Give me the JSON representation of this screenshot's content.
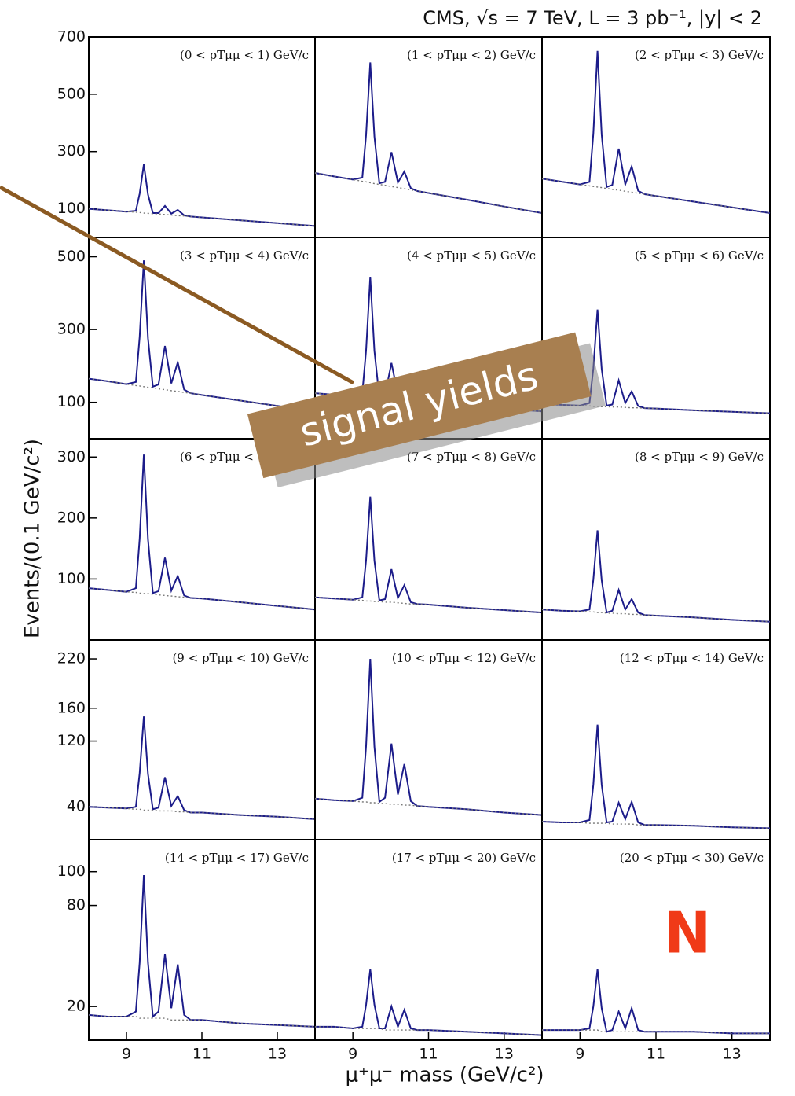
{
  "figure": {
    "title": "CMS, √s = 7 TeV, L = 3 pb⁻¹, |y| < 2",
    "y_label": "Events/(0.1 GeV/c²)",
    "x_label": "μ⁺μ⁻ mass (GeV/c²)",
    "annotations": [
      "signal yields",
      "N"
    ]
  },
  "chart_data": [
    {
      "type": "line",
      "label": "(0 < pTμμ < 1) GeV/c",
      "x": [
        8,
        8.5,
        9,
        9.25,
        9.35,
        9.46,
        9.57,
        9.7,
        9.85,
        10.02,
        10.19,
        10.36,
        10.53,
        10.7,
        11,
        12,
        13,
        14
      ],
      "xlim": [
        8,
        14
      ],
      "ylim": [
        0,
        700
      ],
      "yticks": [
        100,
        300,
        500,
        700
      ],
      "series": [
        {
          "color": "#1c1c8a",
          "values": [
            100,
            95,
            90,
            93,
            153,
            255,
            150,
            85,
            85,
            110,
            83,
            96,
            77,
            73,
            70,
            60,
            50,
            40
          ]
        },
        {
          "color": "#777777",
          "style": "dotted",
          "values": [
            100,
            95,
            90,
            88,
            87,
            85,
            84,
            83,
            82,
            80,
            78,
            76,
            75,
            73,
            70,
            60,
            50,
            40
          ]
        }
      ]
    },
    {
      "type": "line",
      "label": "(1 < pTμμ < 2) GeV/c",
      "x": [
        8,
        8.5,
        9,
        9.25,
        9.35,
        9.46,
        9.57,
        9.7,
        9.85,
        10.02,
        10.19,
        10.36,
        10.53,
        10.7,
        11,
        12,
        13,
        14
      ],
      "xlim": [
        8,
        14
      ],
      "ylim": [
        0,
        700
      ],
      "series": [
        {
          "color": "#1c1c8a",
          "values": [
            225,
            213,
            202,
            209,
            358,
            611,
            352,
            189,
            194,
            298,
            192,
            230,
            172,
            162,
            155,
            132,
            108,
            85
          ]
        },
        {
          "color": "#777777",
          "style": "dotted",
          "values": [
            225,
            213,
            202,
            196,
            194,
            191,
            188,
            185,
            182,
            178,
            174,
            170,
            166,
            162,
            155,
            132,
            108,
            85
          ]
        }
      ]
    },
    {
      "type": "line",
      "label": "(2 < pTμμ < 3) GeV/c",
      "x": [
        8,
        8.5,
        9,
        9.25,
        9.35,
        9.46,
        9.57,
        9.7,
        9.85,
        10.02,
        10.19,
        10.36,
        10.53,
        10.7,
        11,
        12,
        13,
        14
      ],
      "xlim": [
        8,
        14
      ],
      "ylim": [
        0,
        700
      ],
      "series": [
        {
          "color": "#1c1c8a",
          "values": [
            205,
            195,
            185,
            194,
            363,
            651,
            359,
            176,
            183,
            310,
            185,
            248,
            163,
            151,
            145,
            125,
            105,
            85
          ]
        },
        {
          "color": "#777777",
          "style": "dotted",
          "values": [
            205,
            195,
            185,
            180,
            178,
            176,
            174,
            171,
            168,
            165,
            161,
            158,
            154,
            151,
            145,
            125,
            105,
            85
          ]
        }
      ]
    },
    {
      "type": "line",
      "label": "(3 < pTμμ < 4) GeV/c",
      "x": [
        8,
        8.5,
        9,
        9.25,
        9.35,
        9.46,
        9.57,
        9.7,
        9.85,
        10.02,
        10.19,
        10.36,
        10.53,
        10.7,
        11,
        12,
        13,
        14
      ],
      "xlim": [
        8,
        14
      ],
      "ylim": [
        0,
        553
      ],
      "yticks": [
        100,
        300,
        500
      ],
      "series": [
        {
          "color": "#1c1c8a",
          "values": [
            165,
            158,
            150,
            156,
            280,
            490,
            276,
            143,
            149,
            255,
            152,
            210,
            135,
            125,
            120,
            105,
            90,
            75
          ]
        },
        {
          "color": "#777777",
          "style": "dotted",
          "values": [
            165,
            158,
            150,
            146,
            145,
            143,
            141,
            140,
            137,
            135,
            132,
            130,
            127,
            125,
            120,
            105,
            90,
            75
          ]
        }
      ]
    },
    {
      "type": "line",
      "label": "(4 < pTμμ < 5) GeV/c",
      "x": [
        8,
        8.5,
        9,
        9.25,
        9.35,
        9.46,
        9.57,
        9.7,
        9.85,
        10.02,
        10.19,
        10.36,
        10.53,
        10.7,
        11,
        12,
        13,
        14
      ],
      "xlim": [
        8,
        14
      ],
      "ylim": [
        0,
        553
      ],
      "series": [
        {
          "color": "#1c1c8a",
          "values": [
            125,
            121,
            117,
            125,
            243,
            445,
            241,
            114,
            120,
            208,
            121,
            140,
            108,
            103,
            100,
            92,
            83,
            75
          ]
        },
        {
          "color": "#777777",
          "style": "dotted",
          "values": [
            125,
            121,
            117,
            115,
            114,
            113,
            112,
            111,
            110,
            108,
            107,
            105,
            104,
            103,
            100,
            92,
            83,
            75
          ]
        }
      ]
    },
    {
      "type": "line",
      "label": "(5 < pTμμ < 6) GeV/c",
      "x": [
        8,
        8.5,
        9,
        9.25,
        9.35,
        9.46,
        9.57,
        9.7,
        9.85,
        10.02,
        10.19,
        10.36,
        10.53,
        10.7,
        11,
        12,
        13,
        14
      ],
      "xlim": [
        8,
        14
      ],
      "ylim": [
        0,
        553
      ],
      "series": [
        {
          "color": "#1c1c8a",
          "values": [
            95,
            93,
            91,
            98,
            193,
            355,
            192,
            91,
            94,
            160,
            98,
            130,
            90,
            84,
            83,
            78,
            74,
            70
          ]
        },
        {
          "color": "#777777",
          "style": "dotted",
          "values": [
            95,
            93,
            91,
            90,
            89,
            89,
            88,
            88,
            87,
            87,
            86,
            85,
            85,
            84,
            83,
            78,
            74,
            70
          ]
        }
      ]
    },
    {
      "type": "line",
      "label": "(6 < pTμμ < 7) GeV/c",
      "x": [
        8,
        8.5,
        9,
        9.25,
        9.35,
        9.46,
        9.57,
        9.7,
        9.85,
        10.02,
        10.19,
        10.36,
        10.53,
        10.7,
        11,
        12,
        13,
        14
      ],
      "xlim": [
        8,
        14
      ],
      "ylim": [
        0,
        330
      ],
      "yticks": [
        100,
        200,
        300
      ],
      "series": [
        {
          "color": "#1c1c8a",
          "values": [
            85,
            82,
            79,
            85,
            166,
            304,
            165,
            77,
            80,
            135,
            81,
            105,
            73,
            69,
            68,
            62,
            56,
            50
          ]
        },
        {
          "color": "#777777",
          "style": "dotted",
          "values": [
            85,
            82,
            79,
            78,
            77,
            76,
            76,
            75,
            74,
            73,
            72,
            71,
            70,
            69,
            68,
            62,
            56,
            50
          ]
        }
      ]
    },
    {
      "type": "line",
      "label": "(7 < pTμμ < 8) GeV/c",
      "x": [
        8,
        8.5,
        9,
        9.25,
        9.35,
        9.46,
        9.57,
        9.7,
        9.85,
        10.02,
        10.19,
        10.36,
        10.53,
        10.7,
        11,
        12,
        13,
        14
      ],
      "xlim": [
        8,
        14
      ],
      "ylim": [
        0,
        330
      ],
      "series": [
        {
          "color": "#1c1c8a",
          "values": [
            70,
            68,
            66,
            70,
            131,
            235,
            130,
            65,
            67,
            116,
            69,
            90,
            62,
            59,
            58,
            53,
            49,
            45
          ]
        },
        {
          "color": "#777777",
          "style": "dotted",
          "values": [
            70,
            68,
            66,
            65,
            64,
            64,
            63,
            63,
            62,
            62,
            61,
            60,
            59,
            59,
            58,
            53,
            49,
            45
          ]
        }
      ]
    },
    {
      "type": "line",
      "label": "(8 < pTμμ < 9) GeV/c",
      "x": [
        8,
        8.5,
        9,
        9.25,
        9.35,
        9.46,
        9.57,
        9.7,
        9.85,
        10.02,
        10.19,
        10.36,
        10.53,
        10.7,
        11,
        12,
        13,
        14
      ],
      "xlim": [
        8,
        14
      ],
      "ylim": [
        0,
        330
      ],
      "series": [
        {
          "color": "#1c1c8a",
          "values": [
            50,
            48,
            47,
            50,
            99,
            180,
            98,
            45,
            48,
            82,
            50,
            67,
            45,
            41,
            40,
            37,
            33,
            30
          ]
        },
        {
          "color": "#777777",
          "style": "dotted",
          "values": [
            50,
            48,
            47,
            46,
            46,
            45,
            45,
            44,
            44,
            43,
            43,
            42,
            42,
            41,
            40,
            37,
            33,
            30
          ]
        }
      ]
    },
    {
      "type": "line",
      "label": "(9 < pTμμ < 10) GeV/c",
      "x": [
        8,
        8.5,
        9,
        9.25,
        9.35,
        9.46,
        9.57,
        9.7,
        9.85,
        10.02,
        10.19,
        10.36,
        10.53,
        10.7,
        11,
        12,
        13,
        14
      ],
      "xlim": [
        8,
        14
      ],
      "ylim": [
        0,
        243
      ],
      "yticks": [
        40,
        120,
        160,
        220
      ],
      "series": [
        {
          "color": "#1c1c8a",
          "values": [
            40,
            39,
            38,
            40,
            81,
            150,
            80,
            37,
            39,
            76,
            41,
            53,
            36,
            33,
            33,
            30,
            28,
            25
          ]
        },
        {
          "color": "#777777",
          "style": "dotted",
          "values": [
            40,
            39,
            38,
            37,
            37,
            36,
            36,
            36,
            35,
            35,
            35,
            34,
            34,
            33,
            33,
            30,
            28,
            25
          ]
        }
      ]
    },
    {
      "type": "line",
      "label": "(10 < pTμμ < 12) GeV/c",
      "x": [
        8,
        8.5,
        9,
        9.25,
        9.35,
        9.46,
        9.57,
        9.7,
        9.85,
        10.02,
        10.19,
        10.36,
        10.53,
        10.7,
        11,
        12,
        13,
        14
      ],
      "xlim": [
        8,
        14
      ],
      "ylim": [
        0,
        243
      ],
      "series": [
        {
          "color": "#1c1c8a",
          "values": [
            50,
            48,
            47,
            51,
            114,
            220,
            113,
            46,
            51,
            117,
            55,
            92,
            47,
            41,
            40,
            37,
            33,
            30
          ]
        },
        {
          "color": "#777777",
          "style": "dotted",
          "values": [
            50,
            48,
            47,
            46,
            46,
            45,
            45,
            44,
            44,
            43,
            43,
            42,
            42,
            41,
            40,
            37,
            33,
            30
          ]
        }
      ]
    },
    {
      "type": "line",
      "label": "(12 < pTμμ < 14) GeV/c",
      "x": [
        8,
        8.5,
        9,
        9.25,
        9.35,
        9.46,
        9.57,
        9.7,
        9.85,
        10.02,
        10.19,
        10.36,
        10.53,
        10.7,
        11,
        12,
        13,
        14
      ],
      "xlim": [
        8,
        14
      ],
      "ylim": [
        0,
        243
      ],
      "series": [
        {
          "color": "#1c1c8a",
          "values": [
            22,
            21,
            21,
            24,
            67,
            140,
            67,
            21,
            22,
            45,
            25,
            46,
            21,
            18,
            18,
            17,
            15,
            14
          ]
        },
        {
          "color": "#777777",
          "style": "dotted",
          "values": [
            22,
            21,
            21,
            20,
            20,
            20,
            20,
            20,
            19,
            19,
            19,
            19,
            18,
            18,
            18,
            17,
            15,
            14
          ]
        }
      ]
    },
    {
      "type": "line",
      "label": "(14 < pTμμ < 17) GeV/c",
      "x": [
        8,
        8.5,
        9,
        9.25,
        9.35,
        9.46,
        9.57,
        9.7,
        9.85,
        10.02,
        10.19,
        10.36,
        10.53,
        10.7,
        11,
        12,
        13,
        14
      ],
      "xlim": [
        8,
        14
      ],
      "ylim": [
        0,
        119
      ],
      "yticks": [
        20,
        80,
        100
      ],
      "xticks": [
        9,
        11,
        13
      ],
      "series": [
        {
          "color": "#1c1c8a",
          "values": [
            15,
            14,
            14,
            17,
            46,
            98,
            46,
            14,
            17,
            51,
            19,
            45,
            15,
            12,
            12,
            10,
            9,
            8
          ]
        },
        {
          "color": "#777777",
          "style": "dotted",
          "values": [
            15,
            14,
            14,
            14,
            13,
            13,
            13,
            13,
            13,
            13,
            12,
            12,
            12,
            12,
            12,
            10,
            9,
            8
          ]
        }
      ]
    },
    {
      "type": "line",
      "label": "(17 < pTμμ < 20) GeV/c",
      "x": [
        8,
        8.5,
        9,
        9.25,
        9.35,
        9.46,
        9.57,
        9.7,
        9.85,
        10.02,
        10.19,
        10.36,
        10.53,
        10.7,
        11,
        12,
        13,
        14
      ],
      "xlim": [
        8,
        14
      ],
      "ylim": [
        0,
        119
      ],
      "xticks": [
        9,
        11,
        13
      ],
      "series": [
        {
          "color": "#1c1c8a",
          "values": [
            8,
            8,
            7,
            8,
            21,
            42,
            21,
            7,
            7,
            20,
            8,
            18,
            7,
            6,
            6,
            5,
            4,
            3
          ]
        },
        {
          "color": "#777777",
          "style": "dotted",
          "values": [
            8,
            8,
            7,
            7,
            7,
            7,
            7,
            7,
            6,
            6,
            6,
            6,
            6,
            6,
            6,
            5,
            4,
            3
          ]
        }
      ]
    },
    {
      "type": "line",
      "label": "(20 < pTμμ < 30) GeV/c",
      "x": [
        8,
        8.5,
        9,
        9.25,
        9.35,
        9.46,
        9.57,
        9.7,
        9.85,
        10.02,
        10.19,
        10.36,
        10.53,
        10.7,
        11,
        12,
        13,
        14
      ],
      "xlim": [
        8,
        14
      ],
      "ylim": [
        0,
        119
      ],
      "xticks": [
        9,
        11,
        13
      ],
      "series": [
        {
          "color": "#1c1c8a",
          "values": [
            6,
            6,
            6,
            7,
            20,
            42,
            19,
            5,
            6,
            17,
            7,
            19,
            6,
            5,
            5,
            5,
            4,
            4
          ]
        },
        {
          "color": "#777777",
          "style": "dotted",
          "values": [
            6,
            6,
            6,
            6,
            6,
            6,
            5,
            5,
            5,
            5,
            5,
            5,
            5,
            5,
            5,
            5,
            4,
            4
          ]
        }
      ]
    }
  ]
}
